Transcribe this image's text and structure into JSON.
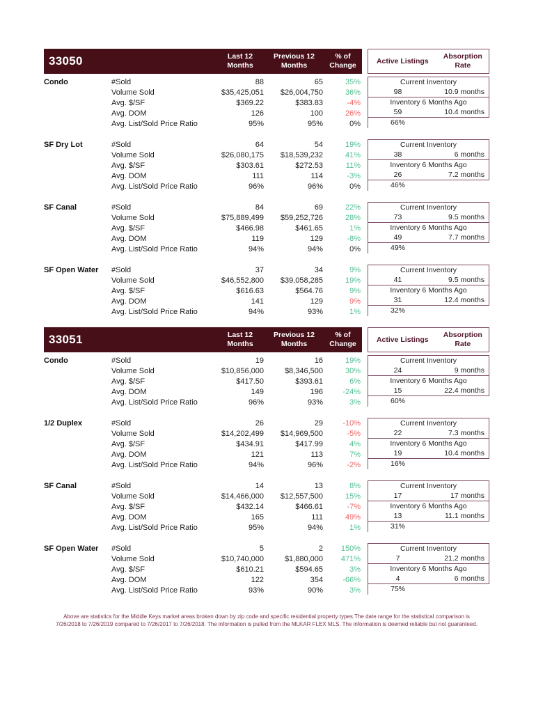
{
  "colors": {
    "bar": "#470f18",
    "boxBorder": "#7d4964",
    "boxText": "#531830",
    "green": "#4ebe8e",
    "red": "#ef6161",
    "dark": "#262626",
    "footer": "#7c3248"
  },
  "columns": {
    "last12_l1": "Last 12",
    "last12_l2": "Months",
    "prev12_l1": "Previous 12",
    "prev12_l2": "Months",
    "change_l1": "% of",
    "change_l2": "Change",
    "active_listings": "Active Listings",
    "absorption_l1": "Absorption",
    "absorption_l2": "Rate"
  },
  "labels": {
    "current_inventory": "Current Inventory",
    "inventory_6mo": "Inventory 6 Months Ago"
  },
  "sections": [
    {
      "zip": "33050",
      "groups": [
        {
          "name": "Condo",
          "rows": [
            {
              "label": "#Sold",
              "last12": "88",
              "prev12": "65",
              "change": "35%",
              "color": "green"
            },
            {
              "label": "Volume Sold",
              "last12": "$35,425,051",
              "prev12": "$26,004,750",
              "change": "36%",
              "color": "green"
            },
            {
              "label": "Avg. $/SF",
              "last12": "$369.22",
              "prev12": "$383.83",
              "change": "-4%",
              "color": "red"
            },
            {
              "label": "Avg. DOM",
              "last12": "126",
              "prev12": "100",
              "change": "26%",
              "color": "red"
            },
            {
              "label": "Avg. List/Sold Price Ratio",
              "last12": "95%",
              "prev12": "95%",
              "change": "0%",
              "color": "dark"
            }
          ],
          "inventory": {
            "current_count": "98",
            "current_rate": "10.9 months",
            "ago_count": "59",
            "ago_rate": "10.4 months",
            "pct": "66%"
          }
        },
        {
          "name": "SF Dry Lot",
          "rows": [
            {
              "label": "#Sold",
              "last12": "64",
              "prev12": "54",
              "change": "19%",
              "color": "green"
            },
            {
              "label": "Volume Sold",
              "last12": "$26,080,175",
              "prev12": "$18,539,232",
              "change": "41%",
              "color": "green"
            },
            {
              "label": "Avg. $/SF",
              "last12": "$303.61",
              "prev12": "$272.53",
              "change": "11%",
              "color": "green"
            },
            {
              "label": "Avg. DOM",
              "last12": "111",
              "prev12": "114",
              "change": "-3%",
              "color": "green"
            },
            {
              "label": "Avg. List/Sold Price Ratio",
              "last12": "96%",
              "prev12": "96%",
              "change": "0%",
              "color": "dark"
            }
          ],
          "inventory": {
            "current_count": "38",
            "current_rate": "6 months",
            "ago_count": "26",
            "ago_rate": "7.2 months",
            "pct": "46%"
          }
        },
        {
          "name": "SF Canal",
          "rows": [
            {
              "label": "#Sold",
              "last12": "84",
              "prev12": "69",
              "change": "22%",
              "color": "green"
            },
            {
              "label": "Volume Sold",
              "last12": "$75,889,499",
              "prev12": "$59,252,726",
              "change": "28%",
              "color": "green"
            },
            {
              "label": "Avg. $/SF",
              "last12": "$466.98",
              "prev12": "$461.65",
              "change": "1%",
              "color": "green"
            },
            {
              "label": "Avg. DOM",
              "last12": "119",
              "prev12": "129",
              "change": "-8%",
              "color": "green"
            },
            {
              "label": "Avg. List/Sold Price Ratio",
              "last12": "94%",
              "prev12": "94%",
              "change": "0%",
              "color": "dark"
            }
          ],
          "inventory": {
            "current_count": "73",
            "current_rate": "9.5 months",
            "ago_count": "49",
            "ago_rate": "7.7 months",
            "pct": "49%"
          }
        },
        {
          "name": "SF Open Water",
          "rows": [
            {
              "label": "#Sold",
              "last12": "37",
              "prev12": "34",
              "change": "9%",
              "color": "green"
            },
            {
              "label": "Volume Sold",
              "last12": "$46,552,800",
              "prev12": "$39,058,285",
              "change": "19%",
              "color": "green"
            },
            {
              "label": "Avg. $/SF",
              "last12": "$616.63",
              "prev12": "$564.76",
              "change": "9%",
              "color": "green"
            },
            {
              "label": "Avg. DOM",
              "last12": "141",
              "prev12": "129",
              "change": "9%",
              "color": "red"
            },
            {
              "label": "Avg. List/Sold Price Ratio",
              "last12": "94%",
              "prev12": "93%",
              "change": "1%",
              "color": "green"
            }
          ],
          "inventory": {
            "current_count": "41",
            "current_rate": "9.5 months",
            "ago_count": "31",
            "ago_rate": "12.4 months",
            "pct": "32%"
          }
        }
      ]
    },
    {
      "zip": "33051",
      "groups": [
        {
          "name": "Condo",
          "rows": [
            {
              "label": "#Sold",
              "last12": "19",
              "prev12": "16",
              "change": "19%",
              "color": "green"
            },
            {
              "label": "Volume Sold",
              "last12": "$10,856,000",
              "prev12": "$8,346,500",
              "change": "30%",
              "color": "green"
            },
            {
              "label": "Avg. $/SF",
              "last12": "$417.50",
              "prev12": "$393.61",
              "change": "6%",
              "color": "green"
            },
            {
              "label": "Avg. DOM",
              "last12": "149",
              "prev12": "196",
              "change": "-24%",
              "color": "green"
            },
            {
              "label": "Avg. List/Sold Price Ratio",
              "last12": "96%",
              "prev12": "93%",
              "change": "3%",
              "color": "green"
            }
          ],
          "inventory": {
            "current_count": "24",
            "current_rate": "9 months",
            "ago_count": "15",
            "ago_rate": "22.4 months",
            "pct": "60%"
          }
        },
        {
          "name": "1/2 Duplex",
          "rows": [
            {
              "label": "#Sold",
              "last12": "26",
              "prev12": "29",
              "change": "-10%",
              "color": "red"
            },
            {
              "label": "Volume Sold",
              "last12": "$14,202,499",
              "prev12": "$14,969,500",
              "change": "-5%",
              "color": "red"
            },
            {
              "label": "Avg. $/SF",
              "last12": "$434.91",
              "prev12": "$417.99",
              "change": "4%",
              "color": "green"
            },
            {
              "label": "Avg. DOM",
              "last12": "121",
              "prev12": "113",
              "change": "7%",
              "color": "green"
            },
            {
              "label": "Avg. List/Sold Price Ratio",
              "last12": "94%",
              "prev12": "96%",
              "change": "-2%",
              "color": "red"
            }
          ],
          "inventory": {
            "current_count": "22",
            "current_rate": "7.3 months",
            "ago_count": "19",
            "ago_rate": "10.4 months",
            "pct": "16%"
          }
        },
        {
          "name": "SF Canal",
          "rows": [
            {
              "label": "#Sold",
              "last12": "14",
              "prev12": "13",
              "change": "8%",
              "color": "green"
            },
            {
              "label": "Volume Sold",
              "last12": "$14,466,000",
              "prev12": "$12,557,500",
              "change": "15%",
              "color": "green"
            },
            {
              "label": "Avg. $/SF",
              "last12": "$432.14",
              "prev12": "$466.61",
              "change": "-7%",
              "color": "red"
            },
            {
              "label": "Avg. DOM",
              "last12": "165",
              "prev12": "111",
              "change": "49%",
              "color": "red"
            },
            {
              "label": "Avg. List/Sold Price Ratio",
              "last12": "95%",
              "prev12": "94%",
              "change": "1%",
              "color": "green"
            }
          ],
          "inventory": {
            "current_count": "17",
            "current_rate": "17 months",
            "ago_count": "13",
            "ago_rate": "11.1 months",
            "pct": "31%"
          }
        },
        {
          "name": "SF Open Water",
          "rows": [
            {
              "label": "#Sold",
              "last12": "5",
              "prev12": "2",
              "change": "150%",
              "color": "green"
            },
            {
              "label": "Volume Sold",
              "last12": "$10,740,000",
              "prev12": "$1,880,000",
              "change": "471%",
              "color": "green"
            },
            {
              "label": "Avg. $/SF",
              "last12": "$610.21",
              "prev12": "$594.65",
              "change": "3%",
              "color": "green"
            },
            {
              "label": "Avg. DOM",
              "last12": "122",
              "prev12": "354",
              "change": "-66%",
              "color": "green"
            },
            {
              "label": "Avg. List/Sold Price Ratio",
              "last12": "93%",
              "prev12": "90%",
              "change": "3%",
              "color": "green"
            }
          ],
          "inventory": {
            "current_count": "7",
            "current_rate": "21.2 months",
            "ago_count": "4",
            "ago_rate": "6 months",
            "pct": "75%"
          }
        }
      ]
    }
  ],
  "footer": {
    "line1": "Above are statistics for the Middle Keys market areas broken down by zip code and specific residential property types.The date range for the statistical comparison is",
    "line2": "7/26/2018 to 7/26/2019 compared to 7/26/2017 to 7/26/2018. The information is pulled from the MLKAR FLEX MLS.  The information is deemed reliable but not guaranteed."
  }
}
